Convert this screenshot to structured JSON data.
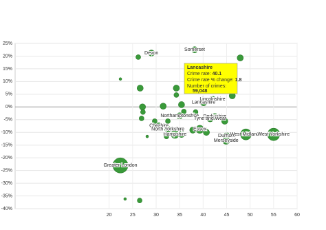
{
  "chart_data": {
    "type": "bubble",
    "xlim": [
      0,
      60
    ],
    "xticks": [
      20,
      25,
      30,
      35,
      40,
      45,
      50,
      55,
      60
    ],
    "ylim": [
      -40,
      25
    ],
    "yticks": [
      {
        "value": 25,
        "label": "25%"
      },
      {
        "value": 20,
        "label": "20%"
      },
      {
        "value": 15,
        "label": "15%"
      },
      {
        "value": 10,
        "label": "10%"
      },
      {
        "value": 5,
        "label": "5%"
      },
      {
        "value": 0,
        "label": "0%"
      },
      {
        "value": -5,
        "label": "-5%"
      },
      {
        "value": -10,
        "label": "-10%"
      },
      {
        "value": -15,
        "label": "-15%"
      },
      {
        "value": -20,
        "label": "-20%"
      },
      {
        "value": -25,
        "label": "-25%"
      },
      {
        "value": -30,
        "label": "-30%"
      },
      {
        "value": -35,
        "label": "-35%"
      },
      {
        "value": -40,
        "label": "-40%"
      }
    ],
    "grid": true,
    "color": "#3a9a3a",
    "points": [
      {
        "x": 22.4,
        "y": 11,
        "size": 9000
      },
      {
        "x": 23.4,
        "y": -36.2,
        "size": 9000
      },
      {
        "x": 26.2,
        "y": 19.6,
        "size": 29000
      },
      {
        "x": 26.5,
        "y": -36.8,
        "size": 29000
      },
      {
        "x": 26.6,
        "y": 7.4,
        "size": 48000
      },
      {
        "x": 27.1,
        "y": 0,
        "size": 48000
      },
      {
        "x": 27.2,
        "y": -2,
        "size": 29000
      },
      {
        "x": 26.9,
        "y": -4.5,
        "size": 29000
      },
      {
        "x": 28.1,
        "y": -11.6,
        "size": 9000
      },
      {
        "x": 29.7,
        "y": -5.6,
        "size": 29000
      },
      {
        "x": 31.5,
        "y": 0.3,
        "size": 48000
      },
      {
        "x": 32.2,
        "y": -11.6,
        "size": 29000
      },
      {
        "x": 32.5,
        "y": -5.6,
        "size": 29000
      },
      {
        "x": 34.3,
        "y": 7.4,
        "size": 48000
      },
      {
        "x": 34.3,
        "y": 4.7,
        "size": 29000
      },
      {
        "x": 35.4,
        "y": 0.9,
        "size": 48000
      },
      {
        "x": 35.9,
        "y": -1.8,
        "size": 29000
      },
      {
        "x": 35.4,
        "y": -10.8,
        "size": 48000
      },
      {
        "x": 37.8,
        "y": -9.1,
        "size": 48000
      },
      {
        "x": 38.4,
        "y": -2,
        "size": 29000
      },
      {
        "x": 40.7,
        "y": -10,
        "size": 48000
      },
      {
        "x": 44.6,
        "y": -5.6,
        "size": 48000
      },
      {
        "x": 46.2,
        "y": 4.4,
        "size": 48000
      },
      {
        "x": 47.9,
        "y": 19.3,
        "size": 48000
      },
      {
        "name": "Devon",
        "x": 29,
        "y": 21.2,
        "size": 48000
      },
      {
        "name": "Somerset",
        "x": 38.2,
        "y": 22.5,
        "size": 48000
      },
      {
        "name": "Lancashire",
        "x": 40.1,
        "y": 1.8,
        "size": 59048,
        "size_label": "59,048"
      },
      {
        "name": "Lincolnshire",
        "x": 42,
        "y": 3,
        "size": 48000
      },
      {
        "name": "Derbyshire",
        "x": 42.5,
        "y": -3.8,
        "size": 48000
      },
      {
        "name": "Northamptonshire",
        "x": 35,
        "y": -3.5,
        "size": 48000
      },
      {
        "name": "Tyne and Wear",
        "x": 41.5,
        "y": -4.5,
        "size": 60000
      },
      {
        "name": "Cheshire",
        "x": 30.6,
        "y": -7.4,
        "size": 48000
      },
      {
        "name": "North Yorkshire",
        "x": 32.5,
        "y": -8.8,
        "size": 48000
      },
      {
        "name": "Hampshire",
        "x": 34,
        "y": -10.8,
        "size": 80000
      },
      {
        "name": "Essex",
        "x": 39.3,
        "y": -8.8,
        "size": 80000
      },
      {
        "name": "Durham",
        "x": 45,
        "y": -11.3,
        "size": 48000
      },
      {
        "name": "Merseyside",
        "x": 44.9,
        "y": -13.2,
        "size": 70000
      },
      {
        "name": "West Midlands",
        "x": 49.1,
        "y": -10.8,
        "size": 150000
      },
      {
        "name": "West Yorkshire",
        "x": 55,
        "y": -10.8,
        "size": 190000
      },
      {
        "name": "Greater London",
        "x": 22.4,
        "y": -23,
        "size": 286000
      }
    ],
    "tooltip": {
      "x_label": "Crime rate:",
      "y_label": "Crime rate % change:",
      "size_label": "Number of crimes:"
    }
  }
}
